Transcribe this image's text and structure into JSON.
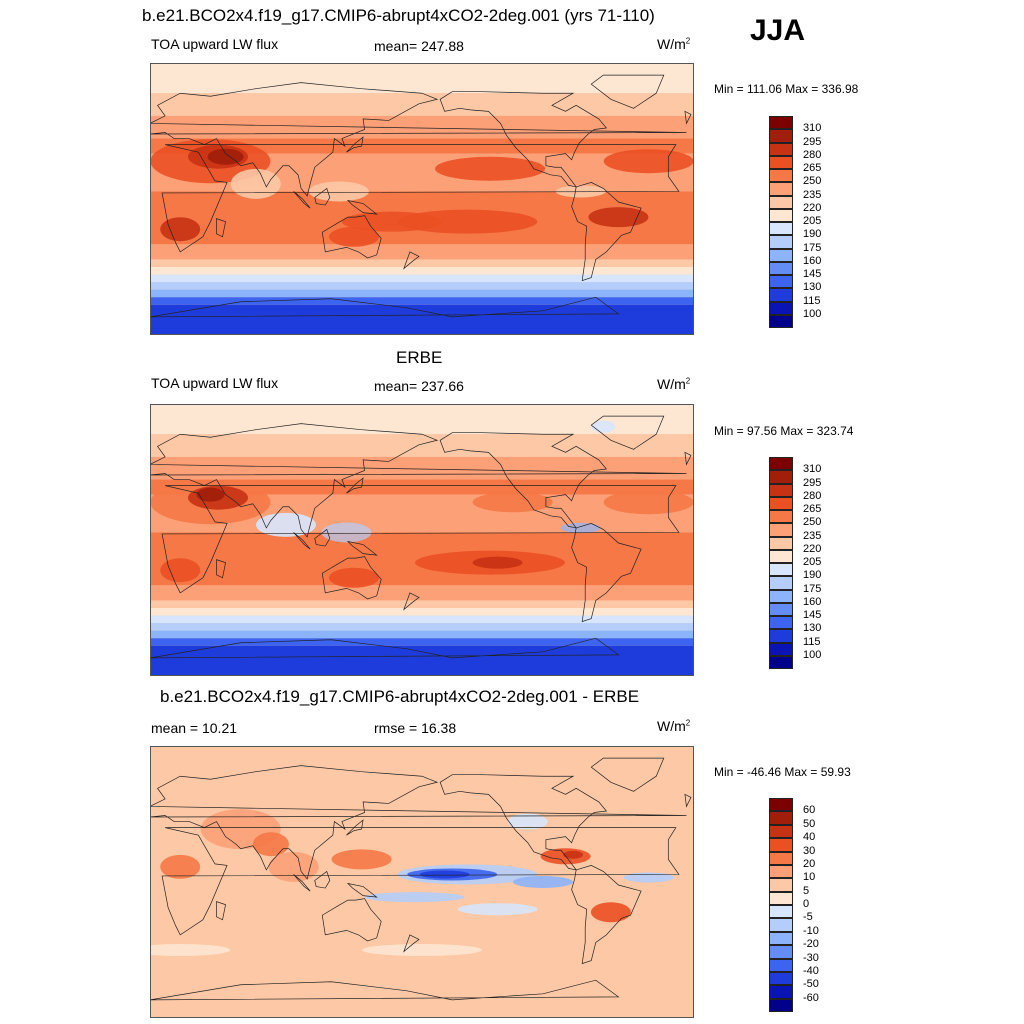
{
  "season": "JJA",
  "panels": [
    {
      "title": "b.e21.BCO2x4.f19_g17.CMIP6-abrupt4xCO2-2deg.001 (yrs 71-110)",
      "left_label": "TOA upward LW flux",
      "center_label": "mean= 247.88",
      "units": "W/m",
      "units_sup": "2",
      "minmax": "Min = 111.06 Max = 336.98"
    },
    {
      "title": "ERBE",
      "left_label": "TOA upward LW flux",
      "center_label": "mean= 237.66",
      "units": "W/m",
      "units_sup": "2",
      "minmax": "Min =  97.56 Max = 323.74"
    },
    {
      "title": "b.e21.BCO2x4.f19_g17.CMIP6-abrupt4xCO2-2deg.001 - ERBE",
      "left_label": "mean =  10.21",
      "center_label": "rmse =  16.38",
      "units": "W/m",
      "units_sup": "2",
      "minmax": "Min = -46.46 Max =  59.93"
    }
  ],
  "chart_data": [
    {
      "type": "heatmap",
      "title": "b.e21.BCO2x4.f19_g17.CMIP6-abrupt4xCO2-2deg.001 (yrs 71-110)",
      "variable": "TOA upward LW flux",
      "units": "W/m2",
      "mean": 247.88,
      "min": 111.06,
      "max": 336.98,
      "contour_levels": [
        100,
        115,
        130,
        145,
        160,
        175,
        190,
        205,
        220,
        235,
        250,
        265,
        280,
        295,
        310
      ],
      "colors": [
        "#00008b",
        "#0a14b4",
        "#1e3cdc",
        "#3c64f0",
        "#648cf5",
        "#8cb4fa",
        "#b4cdfa",
        "#d7e6fc",
        "#fde6d2",
        "#fcc8a5",
        "#fca078",
        "#f57846",
        "#eb5023",
        "#c83214",
        "#a01e0a",
        "#7d0000"
      ]
    },
    {
      "type": "heatmap",
      "title": "ERBE",
      "variable": "TOA upward LW flux",
      "units": "W/m2",
      "mean": 237.66,
      "min": 97.56,
      "max": 323.74,
      "contour_levels": [
        100,
        115,
        130,
        145,
        160,
        175,
        190,
        205,
        220,
        235,
        250,
        265,
        280,
        295,
        310
      ],
      "colors": [
        "#00008b",
        "#0a14b4",
        "#1e3cdc",
        "#3c64f0",
        "#648cf5",
        "#8cb4fa",
        "#b4cdfa",
        "#d7e6fc",
        "#fde6d2",
        "#fcc8a5",
        "#fca078",
        "#f57846",
        "#eb5023",
        "#c83214",
        "#a01e0a",
        "#7d0000"
      ]
    },
    {
      "type": "heatmap",
      "title": "b.e21.BCO2x4.f19_g17.CMIP6-abrupt4xCO2-2deg.001 - ERBE",
      "units": "W/m2",
      "mean": 10.21,
      "rmse": 16.38,
      "min": -46.46,
      "max": 59.93,
      "contour_levels": [
        -60,
        -50,
        -40,
        -30,
        -20,
        -10,
        -5,
        0,
        5,
        10,
        20,
        30,
        40,
        50,
        60
      ],
      "colors": [
        "#00008b",
        "#0a14b4",
        "#1e3cdc",
        "#3c64f0",
        "#648cf5",
        "#8cb4fa",
        "#b4cdfa",
        "#d7e6fc",
        "#fde6d2",
        "#fcc8a5",
        "#fca078",
        "#f57846",
        "#eb5023",
        "#c83214",
        "#a01e0a",
        "#7d0000"
      ]
    }
  ]
}
